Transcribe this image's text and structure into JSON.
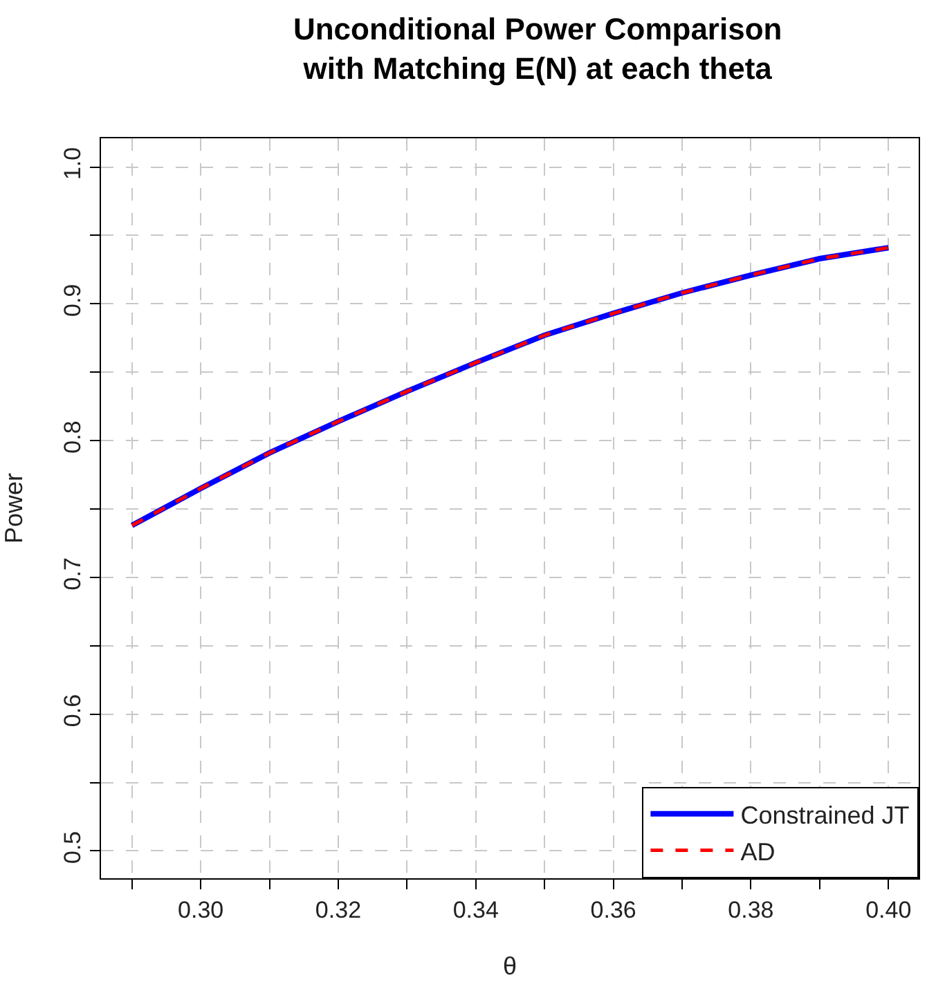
{
  "chart_data": {
    "type": "line",
    "title": "Unconditional Power Comparison\nwith Matching E(N) at each theta",
    "xlabel": "θ",
    "ylabel": "Power",
    "x": [
      0.29,
      0.3,
      0.31,
      0.32,
      0.33,
      0.34,
      0.35,
      0.36,
      0.37,
      0.38,
      0.39,
      0.4
    ],
    "series": [
      {
        "name": "Constrained JT",
        "color": "#0000ff",
        "values": [
          0.738,
          0.765,
          0.791,
          0.814,
          0.836,
          0.857,
          0.877,
          0.893,
          0.908,
          0.921,
          0.933,
          0.941
        ]
      },
      {
        "name": "AD",
        "color": "#ff0000",
        "line_style": "dashed",
        "values": [
          0.738,
          0.765,
          0.791,
          0.814,
          0.836,
          0.857,
          0.877,
          0.893,
          0.908,
          0.921,
          0.933,
          0.941
        ]
      }
    ],
    "xlim": [
      0.2855,
      0.4044
    ],
    "ylim": [
      0.48,
      1.021
    ],
    "xticks": [
      {
        "value": 0.29,
        "label": null
      },
      {
        "value": 0.3,
        "label": "0.30"
      },
      {
        "value": 0.31,
        "label": null
      },
      {
        "value": 0.32,
        "label": "0.32"
      },
      {
        "value": 0.33,
        "label": null
      },
      {
        "value": 0.34,
        "label": "0.34"
      },
      {
        "value": 0.35,
        "label": null
      },
      {
        "value": 0.36,
        "label": "0.36"
      },
      {
        "value": 0.37,
        "label": null
      },
      {
        "value": 0.38,
        "label": "0.38"
      },
      {
        "value": 0.39,
        "label": null
      },
      {
        "value": 0.4,
        "label": "0.40"
      }
    ],
    "yticks": [
      0.5,
      {
        "value": 0.55,
        "label": null
      },
      0.6,
      {
        "value": 0.65,
        "label": null
      },
      0.7,
      {
        "value": 0.75,
        "label": null
      },
      0.8,
      {
        "value": 0.85,
        "label": null
      },
      0.9,
      {
        "value": 0.95,
        "label": null
      },
      {
        "value": 1.0,
        "label": "1.0"
      }
    ],
    "grid": true,
    "legend": "bottom right"
  }
}
